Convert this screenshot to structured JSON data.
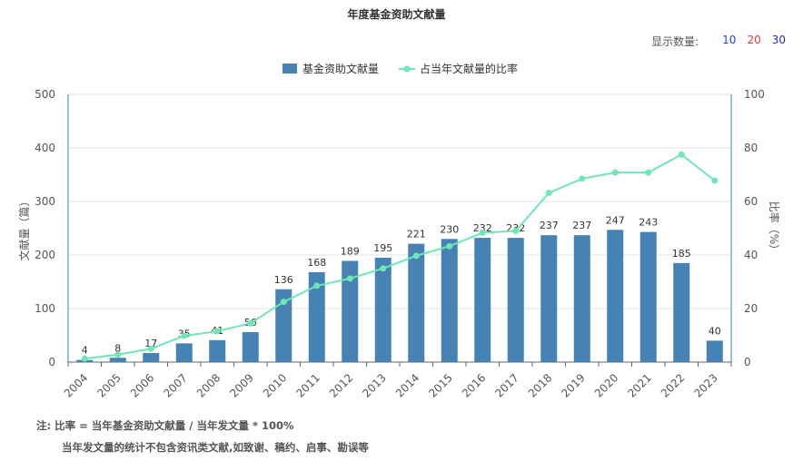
{
  "header": {
    "title": "年度基金资助文献量",
    "show_count_label": "显示数量:",
    "show_count_options": [
      "10",
      "20",
      "30"
    ]
  },
  "footnotes": {
    "line1": "注:  比率 = 当年基金资助文献量 / 当年发文量 * 100%",
    "line2": "当年发文量的统计不包含资讯类文献,如致谢、稿约、启事、勘误等"
  },
  "chart_data": {
    "type": "bar",
    "categories": [
      "2004",
      "2005",
      "2006",
      "2007",
      "2008",
      "2009",
      "2010",
      "2011",
      "2012",
      "2013",
      "2014",
      "2015",
      "2016",
      "2017",
      "2018",
      "2019",
      "2020",
      "2021",
      "2022",
      "2023"
    ],
    "series": [
      {
        "name": "基金资助文献量",
        "type": "bar",
        "axis": "left",
        "color": "#4682b4",
        "values": [
          4,
          8,
          17,
          35,
          41,
          56,
          136,
          168,
          189,
          195,
          221,
          230,
          232,
          232,
          237,
          237,
          247,
          243,
          185,
          40
        ]
      },
      {
        "name": "占当年文献量的比率",
        "type": "line",
        "axis": "right",
        "color": "#6ee6b5",
        "values": [
          1.3,
          2.8,
          5.0,
          9.8,
          11.5,
          14.5,
          22.5,
          28.5,
          31.2,
          35.0,
          39.7,
          43.3,
          48.3,
          49.0,
          63.2,
          68.5,
          70.8,
          70.8,
          77.5,
          67.8
        ]
      }
    ],
    "ylabel_left": "文献量（篇）",
    "ylabel_right": "比率（%）",
    "ylim_left": [
      0,
      500
    ],
    "ylim_right": [
      0,
      100
    ],
    "yticks_left": [
      0,
      100,
      200,
      300,
      400,
      500
    ],
    "yticks_right": [
      0,
      20,
      40,
      60,
      80,
      100
    ],
    "grid": true,
    "legend_position": "top-center"
  }
}
